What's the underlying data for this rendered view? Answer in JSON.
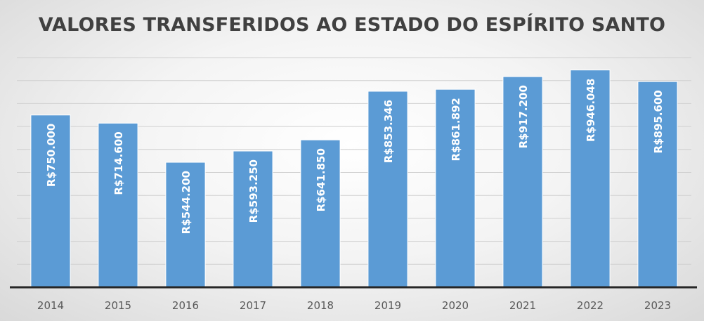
{
  "chart_data": {
    "type": "bar",
    "title": "VALORES TRANSFERIDOS AO ESTADO DO ESPÍRITO SANTO",
    "xlabel": "",
    "ylabel": "",
    "categories": [
      "2014",
      "2015",
      "2016",
      "2017",
      "2018",
      "2019",
      "2020",
      "2021",
      "2022",
      "2023"
    ],
    "values": [
      750000,
      714600,
      544200,
      593250,
      641850,
      853346,
      861892,
      917200,
      946048,
      895600
    ],
    "data_labels": [
      "R$750.000",
      "R$714.600",
      "R$544.200",
      "R$593.250",
      "R$641.850",
      "R$853.346",
      "R$861.892",
      "R$917.200",
      "R$946.048",
      "R$895.600"
    ],
    "ylim": [
      0,
      1000000
    ],
    "grid": true,
    "bar_color": "#5b9bd5"
  }
}
